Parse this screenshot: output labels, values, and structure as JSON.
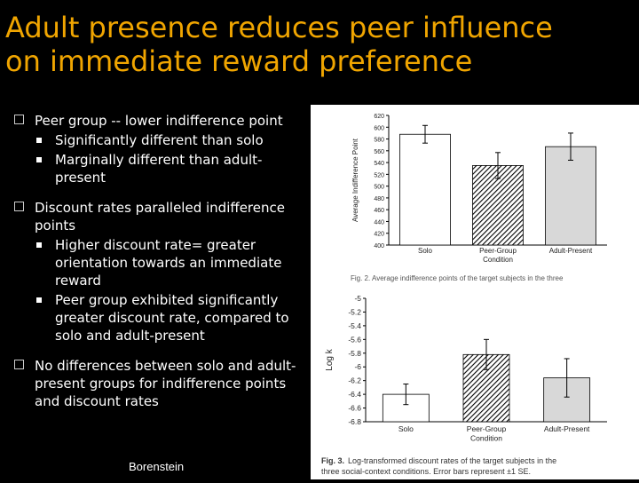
{
  "title": {
    "line1": "Adult presence reduces peer influence",
    "line2": "on immediate reward preference"
  },
  "bullets": [
    {
      "text": "Peer group -- lower indifference point",
      "subs": [
        "Significantly different than solo",
        "Marginally different than adult-present"
      ]
    },
    {
      "text": "Discount rates paralleled indifference points",
      "subs": [
        "Higher discount rate= greater orientation towards an immediate reward",
        "Peer group exhibited significantly greater discount rate, compared to solo and adult-present"
      ]
    },
    {
      "text": "No differences between solo and adult-present groups for indifference points and discount rates",
      "subs": []
    }
  ],
  "author": "Borenstein",
  "chart_data": [
    {
      "type": "bar",
      "categories": [
        "Solo",
        "Peer-Group Condition",
        "Adult-Present"
      ],
      "category_lines": [
        [
          "Solo"
        ],
        [
          "Peer-Group",
          "Condition"
        ],
        [
          "Adult-Present"
        ]
      ],
      "values": [
        588,
        535,
        567
      ],
      "errors": [
        15,
        22,
        23
      ],
      "patterns": [
        "white",
        "hatch",
        "gray"
      ],
      "ylabel": "Average Indifference Point",
      "ylim": [
        400,
        620
      ],
      "yticks": [
        400,
        420,
        440,
        460,
        480,
        500,
        520,
        540,
        560,
        580,
        600,
        620
      ],
      "caption": "Fig. 2. Average indifference points of the target subjects in the three"
    },
    {
      "type": "bar",
      "categories": [
        "Solo",
        "Peer-Group Condition",
        "Adult-Present"
      ],
      "category_lines": [
        [
          "Solo"
        ],
        [
          "Peer-Group",
          "Condition"
        ],
        [
          "Adult-Present"
        ]
      ],
      "values": [
        -6.4,
        -5.82,
        -6.16
      ],
      "errors": [
        0.15,
        0.22,
        0.28
      ],
      "patterns": [
        "white",
        "hatch",
        "gray"
      ],
      "ylabel": "Log k",
      "ylim": [
        -6.8,
        -5.0
      ],
      "yticks": [
        -6.8,
        -6.6,
        -6.4,
        -6.2,
        -6.0,
        -5.8,
        -5.6,
        -5.4,
        -5.2,
        -5.0
      ],
      "caption_bold": "Fig. 3.",
      "caption_rest": "Log-transformed discount rates of the target subjects in the",
      "caption_line2": "three social-context conditions. Error bars represent ±1 SE."
    }
  ]
}
